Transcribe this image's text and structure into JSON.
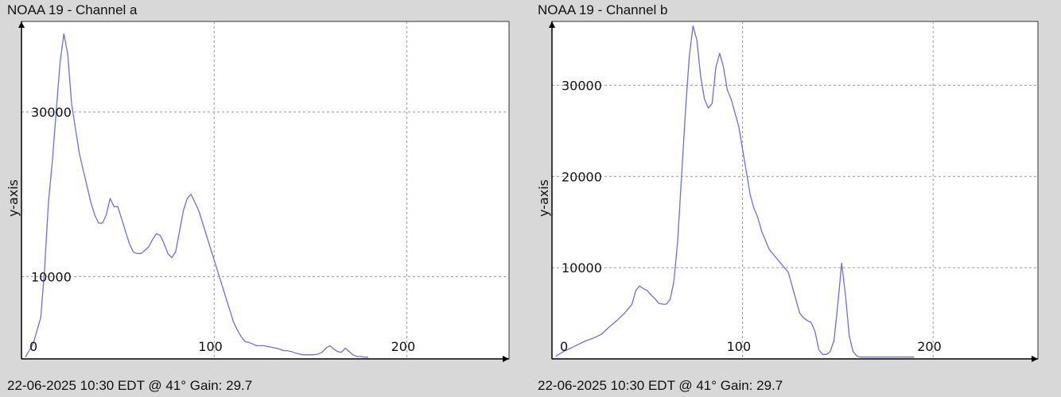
{
  "charts": [
    {
      "title": "NOAA 19 - Channel a",
      "footer": "22-06-2025 10:30 EDT @ 41° Gain: 29.7"
    },
    {
      "title": "NOAA 19 - Channel b",
      "footer": "22-06-2025 10:30 EDT @ 41° Gain: 29.7"
    }
  ],
  "colors": {
    "line": "#6f6fd6",
    "grid": "#9a9a9a",
    "axis": "#000000",
    "plot_bg": "#ffffff",
    "page_bg": "#d8d8d8"
  },
  "chart_data": [
    {
      "type": "line",
      "title": "NOAA 19 - Channel a",
      "ylabel": "y-axis",
      "xlabel": "",
      "x_ticks": [
        0,
        100,
        200
      ],
      "y_ticks": [
        10000,
        30000
      ],
      "y_tick_labels": [
        "10000",
        "30000"
      ],
      "x_tick_labels": [
        "0",
        "100",
        "200"
      ],
      "xlim": [
        0,
        253
      ],
      "ylim": [
        0,
        41000
      ],
      "grid": true,
      "series": [
        {
          "x": [
            2,
            6,
            10,
            12,
            14,
            16,
            18,
            20,
            22,
            24,
            26,
            28,
            30,
            32,
            34,
            36,
            38,
            40,
            42,
            44,
            46,
            48,
            50,
            52,
            54,
            56,
            58,
            60,
            62,
            64,
            66,
            68,
            70,
            72,
            74,
            76,
            78,
            80,
            82,
            84,
            86,
            88,
            90,
            92,
            94,
            96,
            98,
            100,
            102,
            104,
            106,
            108,
            110,
            112,
            114,
            116,
            118,
            120,
            122,
            124,
            126,
            128,
            130,
            132,
            134,
            136,
            138,
            140,
            142,
            144,
            146,
            148,
            150,
            152,
            154,
            156,
            158,
            160,
            162,
            164,
            166,
            168,
            170,
            172,
            174,
            176,
            178,
            180
          ],
          "y": [
            200,
            1800,
            5000,
            11000,
            19000,
            24000,
            30000,
            36000,
            39500,
            37000,
            31000,
            28000,
            25000,
            23000,
            21000,
            19000,
            17500,
            16500,
            16500,
            17500,
            19500,
            18500,
            18500,
            17000,
            15500,
            14000,
            13000,
            12800,
            12800,
            13200,
            13600,
            14500,
            15200,
            15000,
            14000,
            12800,
            12300,
            13000,
            15500,
            18000,
            19500,
            20000,
            19000,
            18000,
            16500,
            15000,
            13500,
            12000,
            10500,
            9000,
            7500,
            6000,
            4500,
            3500,
            2700,
            2100,
            2000,
            1800,
            1600,
            1600,
            1600,
            1500,
            1400,
            1300,
            1200,
            1000,
            1000,
            900,
            700,
            600,
            500,
            500,
            500,
            500,
            600,
            800,
            1300,
            1600,
            1200,
            900,
            800,
            1300,
            900,
            500,
            300,
            300,
            200,
            200
          ]
        }
      ]
    },
    {
      "type": "line",
      "title": "NOAA 19 - Channel b",
      "ylabel": "y-axis",
      "xlabel": "",
      "x_ticks": [
        0,
        100,
        200
      ],
      "y_ticks": [
        10000,
        20000,
        30000
      ],
      "y_tick_labels": [
        "10000",
        "20000",
        "30000"
      ],
      "x_tick_labels": [
        "0",
        "100",
        "200"
      ],
      "xlim": [
        0,
        255
      ],
      "ylim": [
        0,
        37000
      ],
      "grid": true,
      "series": [
        {
          "x": [
            2,
            6,
            10,
            14,
            18,
            22,
            26,
            30,
            34,
            38,
            42,
            44,
            46,
            48,
            50,
            52,
            54,
            56,
            58,
            60,
            62,
            64,
            66,
            68,
            70,
            72,
            74,
            76,
            78,
            80,
            82,
            84,
            86,
            88,
            90,
            92,
            94,
            96,
            98,
            100,
            102,
            104,
            106,
            108,
            110,
            112,
            114,
            116,
            118,
            120,
            122,
            124,
            126,
            128,
            130,
            132,
            134,
            136,
            138,
            140,
            142,
            144,
            146,
            148,
            150,
            152,
            154,
            156,
            158,
            160,
            162,
            164,
            166,
            168,
            170,
            172,
            174,
            176,
            178,
            180,
            182,
            184,
            186,
            188,
            190
          ],
          "y": [
            300,
            800,
            1200,
            1600,
            2000,
            2300,
            2700,
            3500,
            4200,
            5000,
            6000,
            7500,
            8000,
            7700,
            7500,
            7000,
            6600,
            6100,
            6000,
            6000,
            6500,
            8500,
            13000,
            20000,
            27000,
            33000,
            36500,
            35000,
            31000,
            28500,
            27500,
            28000,
            32000,
            33500,
            32000,
            29500,
            28500,
            27000,
            25500,
            23000,
            20500,
            18000,
            16500,
            15500,
            14000,
            13000,
            12000,
            11500,
            11000,
            10500,
            10000,
            9500,
            8000,
            6500,
            5000,
            4500,
            4200,
            4000,
            3000,
            1000,
            500,
            500,
            800,
            2000,
            6000,
            10500,
            7000,
            2500,
            800,
            300,
            200,
            200,
            200,
            200,
            200,
            200,
            200,
            200,
            200,
            200,
            200,
            200,
            200,
            200,
            200
          ]
        }
      ]
    }
  ]
}
